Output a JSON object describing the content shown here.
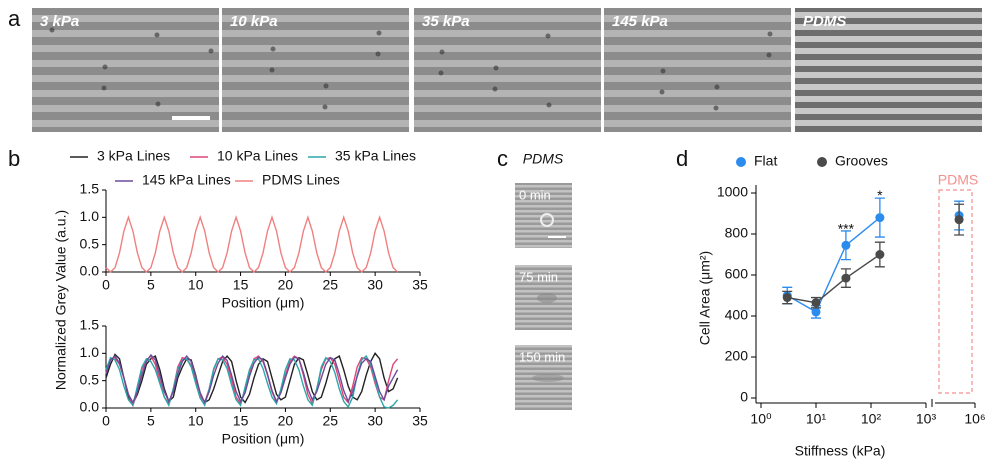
{
  "panel_labels": [
    "a",
    "b",
    "c",
    "d"
  ],
  "micrographs": [
    "3 kPa",
    "10 kPa",
    "35 kPa",
    "145 kPa",
    "PDMS"
  ],
  "timelapse": {
    "title": "PDMS",
    "frames": [
      "0 min",
      "75 min",
      "150 min"
    ]
  },
  "chart_data": [
    {
      "type": "line",
      "ylabel": "Normalized Grey Value (a.u.)",
      "xlabel": "Position (μm)",
      "x": [
        0,
        0.5,
        1,
        1.5,
        2,
        2.5,
        3,
        3.5,
        4,
        4.5,
        5,
        5.5,
        6,
        6.5,
        7,
        7.5,
        8,
        8.5,
        9,
        9.5,
        10,
        10.5,
        11,
        11.5,
        12,
        12.5,
        13,
        13.5,
        14,
        14.5,
        15,
        15.5,
        16,
        16.5,
        17,
        17.5,
        18,
        18.5,
        19,
        19.5,
        20,
        20.5,
        21,
        21.5,
        22,
        22.5,
        23,
        23.5,
        24,
        24.5,
        25,
        25.5,
        26,
        26.5,
        27,
        27.5,
        28,
        28.5,
        29,
        29.5,
        30,
        30.5,
        31,
        31.5,
        32,
        32.5
      ],
      "series": [
        {
          "name": "PDMS Lines",
          "color": "#f08080",
          "values": [
            0.08,
            0,
            0.08,
            0.35,
            0.75,
            1,
            0.75,
            0.35,
            0.08,
            0,
            0.08,
            0.35,
            0.75,
            1,
            0.75,
            0.35,
            0.08,
            0,
            0.08,
            0.35,
            0.75,
            1,
            0.75,
            0.35,
            0.08,
            0,
            0.08,
            0.35,
            0.75,
            1,
            0.75,
            0.35,
            0.08,
            0,
            0.08,
            0.35,
            0.75,
            1,
            0.75,
            0.35,
            0.08,
            0,
            0.08,
            0.35,
            0.75,
            1,
            0.75,
            0.35,
            0.08,
            0,
            0.08,
            0.35,
            0.75,
            1,
            0.75,
            0.35,
            0.08,
            0,
            0.08,
            0.35,
            0.75,
            1,
            0.75,
            0.35,
            0.08,
            0
          ]
        }
      ],
      "xlim": [
        0,
        35
      ],
      "xticks": [
        0,
        5,
        10,
        15,
        20,
        25,
        30,
        35
      ],
      "ylim": [
        0,
        1.5
      ],
      "yticks": [
        {
          "value": 0,
          "label": "0.0"
        },
        0.5,
        {
          "value": 1,
          "label": "1.0"
        },
        1.5
      ]
    },
    {
      "type": "line",
      "xlabel": "Position (μm)",
      "x": [
        0,
        0.5,
        1,
        1.5,
        2,
        2.5,
        3,
        3.5,
        4,
        4.5,
        5,
        5.5,
        6,
        6.5,
        7,
        7.5,
        8,
        8.5,
        9,
        9.5,
        10,
        10.5,
        11,
        11.5,
        12,
        12.5,
        13,
        13.5,
        14,
        14.5,
        15,
        15.5,
        16,
        16.5,
        17,
        17.5,
        18,
        18.5,
        19,
        19.5,
        20,
        20.5,
        21,
        21.5,
        22,
        22.5,
        23,
        23.5,
        24,
        24.5,
        25,
        25.5,
        26,
        26.5,
        27,
        27.5,
        28,
        28.5,
        29,
        29.5,
        30,
        30.5,
        31,
        31.5,
        32,
        32.5
      ],
      "series": [
        {
          "name": "3 kPa Lines",
          "color": "#222222",
          "values": [
            0.55,
            0.8,
            0.98,
            0.9,
            0.55,
            0.2,
            0.08,
            0.25,
            0.5,
            0.8,
            0.9,
            0.95,
            0.7,
            0.35,
            0.12,
            0.2,
            0.55,
            0.75,
            0.9,
            0.88,
            0.6,
            0.25,
            0.1,
            0.15,
            0.35,
            0.6,
            0.85,
            0.95,
            0.85,
            0.5,
            0.2,
            0.1,
            0.25,
            0.55,
            0.8,
            0.9,
            0.85,
            0.55,
            0.25,
            0.15,
            0.2,
            0.5,
            0.8,
            0.92,
            0.88,
            0.6,
            0.3,
            0.15,
            0.2,
            0.45,
            0.75,
            0.9,
            0.95,
            0.7,
            0.4,
            0.2,
            0.15,
            0.3,
            0.6,
            0.85,
            1,
            0.9,
            0.55,
            0.3,
            0.35,
            0.55
          ]
        },
        {
          "name": "10 kPa Lines",
          "color": "#e0457b",
          "values": [
            0.65,
            0.9,
            0.92,
            0.8,
            0.55,
            0.25,
            0.05,
            0.3,
            0.7,
            0.88,
            0.95,
            0.8,
            0.5,
            0.2,
            0.08,
            0.35,
            0.75,
            0.92,
            0.9,
            0.78,
            0.5,
            0.22,
            0.1,
            0.35,
            0.7,
            0.9,
            0.93,
            0.8,
            0.52,
            0.2,
            0.08,
            0.3,
            0.65,
            0.9,
            0.95,
            0.85,
            0.6,
            0.3,
            0.1,
            0.3,
            0.6,
            0.85,
            0.95,
            0.9,
            0.6,
            0.25,
            0.08,
            0.35,
            0.7,
            0.9,
            0.92,
            0.8,
            0.5,
            0.2,
            0.1,
            0.4,
            0.75,
            0.92,
            0.9,
            0.75,
            0.45,
            0.2,
            0.15,
            0.5,
            0.8,
            0.9
          ]
        },
        {
          "name": "35 kPa Lines",
          "color": "#2aa7a7",
          "values": [
            0.7,
            0.92,
            0.88,
            0.7,
            0.4,
            0.15,
            0.05,
            0.4,
            0.75,
            0.9,
            0.85,
            0.7,
            0.45,
            0.2,
            0.05,
            0.35,
            0.7,
            0.88,
            0.9,
            0.75,
            0.45,
            0.18,
            0.05,
            0.35,
            0.72,
            0.9,
            0.88,
            0.72,
            0.42,
            0.15,
            0.05,
            0.38,
            0.7,
            0.88,
            0.9,
            0.72,
            0.45,
            0.2,
            0.08,
            0.35,
            0.7,
            0.9,
            0.88,
            0.7,
            0.4,
            0.15,
            0.05,
            0.35,
            0.75,
            0.92,
            0.85,
            0.65,
            0.35,
            0.12,
            0.02,
            0.2,
            0.6,
            0.88,
            0.95,
            0.8,
            0.5,
            0.2,
            0.02,
            0,
            0.05,
            0.15
          ]
        },
        {
          "name": "145 kPa Lines",
          "color": "#6a4c9c",
          "values": [
            0.62,
            0.88,
            0.95,
            0.82,
            0.55,
            0.25,
            0.1,
            0.3,
            0.6,
            0.85,
            0.97,
            0.88,
            0.6,
            0.3,
            0.12,
            0.3,
            0.62,
            0.85,
            0.95,
            0.85,
            0.58,
            0.28,
            0.1,
            0.3,
            0.6,
            0.82,
            0.95,
            0.87,
            0.6,
            0.3,
            0.12,
            0.28,
            0.58,
            0.82,
            0.93,
            0.88,
            0.62,
            0.32,
            0.12,
            0.28,
            0.55,
            0.8,
            0.93,
            0.9,
            0.65,
            0.35,
            0.15,
            0.3,
            0.55,
            0.8,
            0.92,
            0.88,
            0.62,
            0.32,
            0.12,
            0.3,
            0.58,
            0.82,
            0.9,
            0.85,
            0.58,
            0.3,
            0.15,
            0.4,
            0.55,
            0.7
          ]
        }
      ],
      "xlim": [
        0,
        35
      ],
      "xticks": [
        0,
        5,
        10,
        15,
        20,
        25,
        30,
        35
      ],
      "ylim": [
        0,
        1.5
      ],
      "yticks": [
        {
          "value": 0,
          "label": "0.0"
        },
        0.5,
        {
          "value": 1,
          "label": "1.0"
        },
        1.5
      ]
    },
    {
      "type": "scatter",
      "xscale": "log",
      "xlabel": "Stiffness (kPa)",
      "ylabel": "Cell Area (μm²)",
      "x": [
        3,
        10,
        35,
        145
      ],
      "series": [
        {
          "name": "Flat",
          "color": "#2b8cee",
          "values": [
            500,
            420,
            745,
            880
          ],
          "errors": [
            40,
            30,
            70,
            95
          ]
        },
        {
          "name": "Grooves",
          "color": "#4a4a4a",
          "values": [
            490,
            465,
            585,
            700
          ],
          "errors": [
            30,
            25,
            45,
            60
          ]
        }
      ],
      "annotations": [
        {
          "text": "***",
          "x": 35,
          "y": 820
        },
        {
          "text": "*",
          "x": 145,
          "y": 985
        }
      ],
      "xlim": [
        1,
        1000
      ],
      "xticks": [
        {
          "value": 1,
          "label": "10⁰"
        },
        {
          "value": 10,
          "label": "10¹"
        },
        {
          "value": 100,
          "label": "10²"
        },
        {
          "value": 1000,
          "label": "10³"
        }
      ],
      "ylim": [
        0,
        1000
      ],
      "yticks": [
        0,
        200,
        400,
        600,
        800,
        1000
      ]
    },
    {
      "type": "scatter",
      "xscale": "log",
      "title": "PDMS",
      "x": [
        400000
      ],
      "series": [
        {
          "color": "#2b8cee",
          "values": [
            890
          ],
          "errors": [
            70
          ]
        },
        {
          "color": "#4a4a4a",
          "values": [
            870
          ],
          "errors": [
            75
          ]
        }
      ],
      "xlim": [
        100000,
        1000000
      ],
      "xticks": [
        {
          "value": 1000000,
          "label": "10⁶"
        }
      ],
      "ylim": [
        0,
        1000
      ]
    }
  ]
}
